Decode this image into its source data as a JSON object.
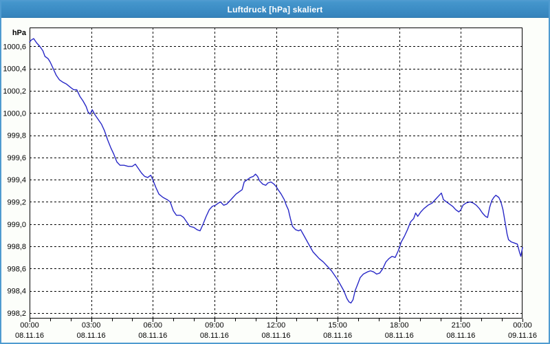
{
  "window": {
    "title": "Luftdruck [hPa] skaliert",
    "colors": {
      "titlebar_bg": "#3b8cc4",
      "titlebar_text": "#ffffff",
      "window_border": "#4f9bd0",
      "window_bg": "#fcfefa",
      "plot_bg": "#ffffff",
      "grid_color": "#000000",
      "axis_color": "#000000",
      "line_color": "#2727c6",
      "tick_text_color": "#000000"
    }
  },
  "chart_data": {
    "type": "line",
    "title": "Luftdruck [hPa] skaliert",
    "ylabel": "hPa",
    "xlabel": "",
    "grid": "dashed",
    "legend": "none",
    "ylim": [
      998.15,
      1000.77
    ],
    "xlim_hours": [
      0,
      24
    ],
    "y_ticks": [
      {
        "value": 1000.6,
        "label": "1000,6"
      },
      {
        "value": 1000.4,
        "label": "1000,4"
      },
      {
        "value": 1000.2,
        "label": "1000,2"
      },
      {
        "value": 1000.0,
        "label": "1000,0"
      },
      {
        "value": 999.8,
        "label": "999,8"
      },
      {
        "value": 999.6,
        "label": "999,6"
      },
      {
        "value": 999.4,
        "label": "999,4"
      },
      {
        "value": 999.2,
        "label": "999,2"
      },
      {
        "value": 999.0,
        "label": "999,0"
      },
      {
        "value": 998.8,
        "label": "998,8"
      },
      {
        "value": 998.6,
        "label": "998,6"
      },
      {
        "value": 998.4,
        "label": "998,4"
      },
      {
        "value": 998.2,
        "label": "998,2"
      }
    ],
    "x_ticks": [
      {
        "hour": 0,
        "time": "00:00",
        "date": "08.11.16"
      },
      {
        "hour": 3,
        "time": "03:00",
        "date": "08.11.16"
      },
      {
        "hour": 6,
        "time": "06:00",
        "date": "08.11.16"
      },
      {
        "hour": 9,
        "time": "09:00",
        "date": "08.11.16"
      },
      {
        "hour": 12,
        "time": "12:00",
        "date": "08.11.16"
      },
      {
        "hour": 15,
        "time": "15:00",
        "date": "08.11.16"
      },
      {
        "hour": 18,
        "time": "18:00",
        "date": "08.11.16"
      },
      {
        "hour": 21,
        "time": "21:00",
        "date": "08.11.16"
      },
      {
        "hour": 24,
        "time": "00:00",
        "date": "09.11.16"
      }
    ],
    "minor_tick_every_hours": 1,
    "series": [
      {
        "name": "Luftdruck",
        "unit": "hPa",
        "color": "#2727c6",
        "points": [
          [
            0,
            1000.64
          ],
          [
            0.1,
            1000.66
          ],
          [
            0.2,
            1000.67
          ],
          [
            0.35,
            1000.63
          ],
          [
            0.5,
            1000.6
          ],
          [
            0.65,
            1000.56
          ],
          [
            0.75,
            1000.51
          ],
          [
            0.9,
            1000.49
          ],
          [
            1.0,
            1000.46
          ],
          [
            1.15,
            1000.4
          ],
          [
            1.3,
            1000.34
          ],
          [
            1.45,
            1000.3
          ],
          [
            1.6,
            1000.28
          ],
          [
            1.8,
            1000.26
          ],
          [
            2.0,
            1000.23
          ],
          [
            2.15,
            1000.21
          ],
          [
            2.3,
            1000.21
          ],
          [
            2.45,
            1000.15
          ],
          [
            2.6,
            1000.11
          ],
          [
            2.75,
            1000.06
          ],
          [
            2.85,
            1000.01
          ],
          [
            2.95,
            999.99
          ],
          [
            3.05,
            1000.03
          ],
          [
            3.2,
            999.98
          ],
          [
            3.35,
            999.94
          ],
          [
            3.5,
            999.9
          ],
          [
            3.65,
            999.84
          ],
          [
            3.8,
            999.76
          ],
          [
            3.95,
            999.69
          ],
          [
            4.1,
            999.63
          ],
          [
            4.25,
            999.56
          ],
          [
            4.4,
            999.53
          ],
          [
            4.6,
            999.53
          ],
          [
            4.8,
            999.52
          ],
          [
            5.0,
            999.52
          ],
          [
            5.15,
            999.54
          ],
          [
            5.3,
            999.5
          ],
          [
            5.45,
            999.46
          ],
          [
            5.6,
            999.43
          ],
          [
            5.75,
            999.42
          ],
          [
            5.9,
            999.44
          ],
          [
            6.0,
            999.4
          ],
          [
            6.15,
            999.33
          ],
          [
            6.3,
            999.27
          ],
          [
            6.5,
            999.24
          ],
          [
            6.7,
            999.22
          ],
          [
            6.85,
            999.2
          ],
          [
            7.0,
            999.12
          ],
          [
            7.15,
            999.08
          ],
          [
            7.35,
            999.08
          ],
          [
            7.5,
            999.06
          ],
          [
            7.65,
            999.02
          ],
          [
            7.8,
            998.98
          ],
          [
            8.0,
            998.97
          ],
          [
            8.15,
            998.95
          ],
          [
            8.3,
            998.94
          ],
          [
            8.45,
            999.0
          ],
          [
            8.6,
            999.07
          ],
          [
            8.75,
            999.13
          ],
          [
            8.9,
            999.16
          ],
          [
            9.05,
            999.17
          ],
          [
            9.2,
            999.19
          ],
          [
            9.3,
            999.2
          ],
          [
            9.45,
            999.17
          ],
          [
            9.6,
            999.18
          ],
          [
            9.75,
            999.21
          ],
          [
            9.9,
            999.24
          ],
          [
            10.05,
            999.27
          ],
          [
            10.2,
            999.29
          ],
          [
            10.35,
            999.31
          ],
          [
            10.45,
            999.38
          ],
          [
            10.6,
            999.4
          ],
          [
            10.75,
            999.42
          ],
          [
            10.9,
            999.43
          ],
          [
            11.0,
            999.45
          ],
          [
            11.1,
            999.43
          ],
          [
            11.2,
            999.39
          ],
          [
            11.35,
            999.36
          ],
          [
            11.5,
            999.35
          ],
          [
            11.6,
            999.37
          ],
          [
            11.75,
            999.38
          ],
          [
            11.9,
            999.36
          ],
          [
            12.0,
            999.34
          ],
          [
            12.1,
            999.31
          ],
          [
            12.25,
            999.27
          ],
          [
            12.4,
            999.22
          ],
          [
            12.5,
            999.17
          ],
          [
            12.6,
            999.13
          ],
          [
            12.7,
            999.05
          ],
          [
            12.8,
            998.98
          ],
          [
            12.95,
            998.95
          ],
          [
            13.1,
            998.94
          ],
          [
            13.2,
            998.95
          ],
          [
            13.35,
            998.9
          ],
          [
            13.5,
            998.85
          ],
          [
            13.65,
            998.8
          ],
          [
            13.8,
            998.75
          ],
          [
            13.95,
            998.72
          ],
          [
            14.1,
            998.69
          ],
          [
            14.3,
            998.66
          ],
          [
            14.5,
            998.62
          ],
          [
            14.7,
            998.58
          ],
          [
            14.85,
            998.54
          ],
          [
            15.0,
            998.5
          ],
          [
            15.15,
            998.45
          ],
          [
            15.3,
            998.4
          ],
          [
            15.45,
            998.33
          ],
          [
            15.55,
            998.3
          ],
          [
            15.65,
            998.29
          ],
          [
            15.75,
            998.32
          ],
          [
            15.85,
            998.4
          ],
          [
            16.0,
            998.47
          ],
          [
            16.1,
            998.52
          ],
          [
            16.25,
            998.55
          ],
          [
            16.45,
            998.57
          ],
          [
            16.6,
            998.58
          ],
          [
            16.75,
            998.57
          ],
          [
            16.9,
            998.55
          ],
          [
            17.05,
            998.56
          ],
          [
            17.2,
            998.6
          ],
          [
            17.35,
            998.66
          ],
          [
            17.5,
            998.69
          ],
          [
            17.65,
            998.71
          ],
          [
            17.8,
            998.7
          ],
          [
            17.95,
            998.76
          ],
          [
            18.1,
            998.84
          ],
          [
            18.25,
            998.89
          ],
          [
            18.4,
            998.95
          ],
          [
            18.55,
            999.02
          ],
          [
            18.7,
            999.05
          ],
          [
            18.8,
            999.1
          ],
          [
            18.9,
            999.07
          ],
          [
            19.05,
            999.11
          ],
          [
            19.2,
            999.14
          ],
          [
            19.4,
            999.17
          ],
          [
            19.6,
            999.19
          ],
          [
            19.8,
            999.23
          ],
          [
            19.95,
            999.26
          ],
          [
            20.05,
            999.28
          ],
          [
            20.15,
            999.22
          ],
          [
            20.3,
            999.2
          ],
          [
            20.45,
            999.18
          ],
          [
            20.6,
            999.16
          ],
          [
            20.75,
            999.13
          ],
          [
            20.9,
            999.11
          ],
          [
            21.0,
            999.13
          ],
          [
            21.1,
            999.17
          ],
          [
            21.25,
            999.19
          ],
          [
            21.45,
            999.2
          ],
          [
            21.6,
            999.19
          ],
          [
            21.75,
            999.17
          ],
          [
            21.9,
            999.14
          ],
          [
            22.05,
            999.1
          ],
          [
            22.2,
            999.07
          ],
          [
            22.3,
            999.06
          ],
          [
            22.4,
            999.15
          ],
          [
            22.5,
            999.21
          ],
          [
            22.6,
            999.24
          ],
          [
            22.7,
            999.26
          ],
          [
            22.85,
            999.24
          ],
          [
            22.95,
            999.2
          ],
          [
            23.05,
            999.13
          ],
          [
            23.15,
            999.02
          ],
          [
            23.25,
            998.91
          ],
          [
            23.32,
            998.86
          ],
          [
            23.45,
            998.84
          ],
          [
            23.6,
            998.83
          ],
          [
            23.75,
            998.82
          ],
          [
            23.85,
            998.75
          ],
          [
            23.92,
            998.71
          ],
          [
            24.0,
            998.79
          ]
        ]
      }
    ]
  }
}
